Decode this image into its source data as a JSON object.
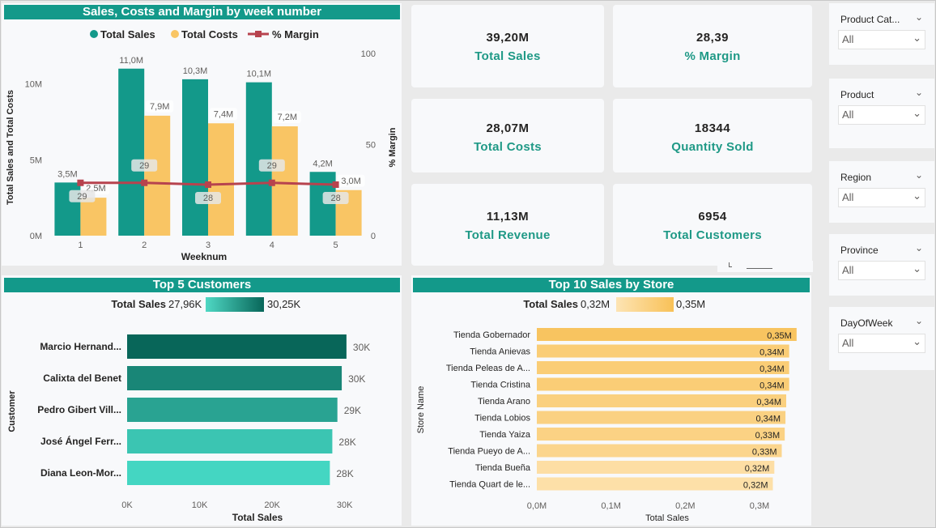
{
  "combo": {
    "title": "Sales, Costs and Margin by week number",
    "legend": [
      "Total Sales",
      "Total Costs",
      "% Margin"
    ],
    "y_left_label": "Total Sales and Total Costs",
    "y_right_label": "% Margin",
    "x_label": "Weeknum",
    "y_left_ticks": [
      "10M",
      "5M",
      "0M"
    ],
    "y_right_ticks": [
      "100",
      "50",
      "0"
    ]
  },
  "kpis": [
    {
      "value": "39,20M",
      "label": "Total Sales"
    },
    {
      "value": "28,39",
      "label": "% Margin"
    },
    {
      "value": "28,07M",
      "label": "Total Costs"
    },
    {
      "value": "18344",
      "label": "Quantity Sold"
    },
    {
      "value": "11,13M",
      "label": "Total Revenue"
    },
    {
      "value": "6954",
      "label": "Total Customers"
    }
  ],
  "customers": {
    "title": "Top 5 Customers",
    "legend_label": "Total Sales",
    "legend_min": "27,96K",
    "legend_max": "30,25K",
    "y_label": "Customer",
    "x_label": "Total Sales",
    "x_ticks": [
      "0K",
      "10K",
      "20K",
      "30K"
    ]
  },
  "stores": {
    "title": "Top 10 Sales by Store",
    "legend_label": "Total Sales",
    "legend_min": "0,32M",
    "legend_max": "0,35M",
    "y_label": "Store Name",
    "x_label": "Total Sales",
    "x_ticks": [
      "0,0M",
      "0,1M",
      "0,2M",
      "0,3M"
    ]
  },
  "slicers": [
    {
      "title": "Product Cat...",
      "value": "All"
    },
    {
      "title": "Product",
      "value": "All"
    },
    {
      "title": "Region",
      "value": "All"
    },
    {
      "title": "Province",
      "value": "All"
    },
    {
      "title": "DayOfWeek",
      "value": "All"
    }
  ],
  "colors": {
    "sales": "#13998a",
    "costs": "#f9c564",
    "margin": "#b7434e",
    "title_bar": "#13998a",
    "kpi_label": "#1f9986"
  },
  "chart_data": [
    {
      "type": "bar",
      "title": "Sales, Costs and Margin by week number",
      "categories": [
        "1",
        "2",
        "3",
        "4",
        "5"
      ],
      "series": [
        {
          "name": "Total Sales",
          "values": [
            3.5,
            11.0,
            10.3,
            10.1,
            4.2
          ],
          "labels": [
            "3,5M",
            "11,0M",
            "10,3M",
            "10,1M",
            "4,2M"
          ]
        },
        {
          "name": "Total Costs",
          "values": [
            2.5,
            7.9,
            7.4,
            7.2,
            3.0
          ],
          "labels": [
            "2,5M",
            "7,9M",
            "7,4M",
            "7,2M",
            "3,0M"
          ]
        },
        {
          "name": "% Margin",
          "values": [
            29,
            29,
            28,
            29,
            28
          ],
          "labels": [
            "29",
            "29",
            "28",
            "29",
            "28"
          ],
          "axis": "right",
          "render": "line"
        }
      ],
      "xlabel": "Weeknum",
      "ylabel": "Total Sales and Total Costs",
      "ylim": [
        0,
        12
      ],
      "y2label": "% Margin",
      "y2lim": [
        0,
        100
      ]
    },
    {
      "type": "bar",
      "orientation": "horizontal",
      "title": "Top 5 Customers",
      "categories": [
        "Marcio Hernand...",
        "Calixta del Benet",
        "Pedro Gibert Vill...",
        "José Ángel Ferr...",
        "Diana Leon-Mor..."
      ],
      "values": [
        30.25,
        29.6,
        29.0,
        28.3,
        27.96
      ],
      "labels": [
        "30K",
        "30K",
        "29K",
        "28K",
        "28K"
      ],
      "xlabel": "Total Sales",
      "ylabel": "Customer",
      "xlim": [
        0,
        33.5
      ]
    },
    {
      "type": "bar",
      "orientation": "horizontal",
      "title": "Top 10 Sales by Store",
      "categories": [
        "Tienda Gobernador",
        "Tienda Anievas",
        "Tienda Peleas de A...",
        "Tienda Cristina",
        "Tienda Arano",
        "Tienda Lobios",
        "Tienda Yaiza",
        "Tienda Pueyo de A...",
        "Tienda Bueña",
        "Tienda Quart de le..."
      ],
      "values": [
        0.35,
        0.34,
        0.34,
        0.34,
        0.336,
        0.335,
        0.334,
        0.33,
        0.32,
        0.318
      ],
      "labels": [
        "0,35M",
        "0,34M",
        "0,34M",
        "0,34M",
        "0,34M",
        "0,34M",
        "0,33M",
        "0,33M",
        "0,32M",
        "0,32M"
      ],
      "xlabel": "Total Sales",
      "ylabel": "Store Name",
      "xlim": [
        0,
        0.38
      ]
    }
  ]
}
